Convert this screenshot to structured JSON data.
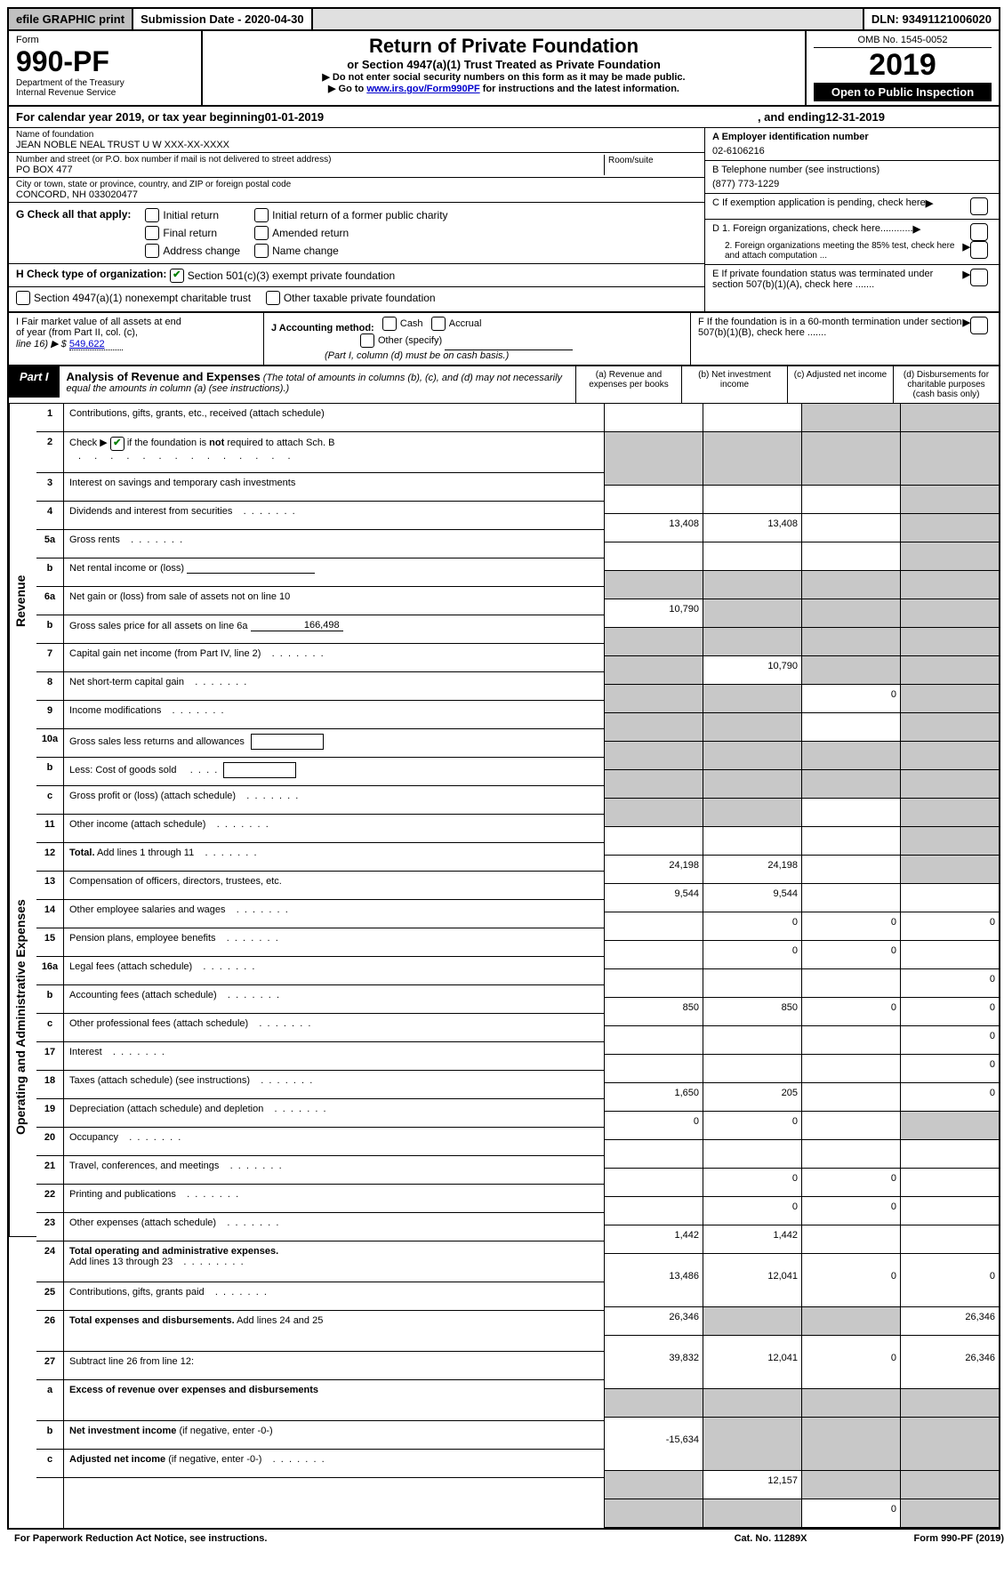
{
  "topbar": {
    "efile": "efile GRAPHIC print",
    "subdate_label": "Submission Date - 2020-04-30",
    "dln": "DLN: 93491121006020"
  },
  "header": {
    "form_label": "Form",
    "form_num": "990-PF",
    "dept1": "Department of the Treasury",
    "dept2": "Internal Revenue Service",
    "title": "Return of Private Foundation",
    "subtitle": "or Section 4947(a)(1) Trust Treated as Private Foundation",
    "note1": "▶ Do not enter social security numbers on this form as it may be made public.",
    "note2_pre": "▶ Go to ",
    "note2_link": "www.irs.gov/Form990PF",
    "note2_post": " for instructions and the latest information.",
    "omb": "OMB No. 1545-0052",
    "year": "2019",
    "open_pub": "Open to Public Inspection"
  },
  "calrow": {
    "pre": "For calendar year 2019, or tax year beginning ",
    "begin": "01-01-2019",
    "mid": " , and ending ",
    "end": "12-31-2019"
  },
  "info": {
    "name_label": "Name of foundation",
    "name": "JEAN NOBLE NEAL TRUST U W XXX-XX-XXXX",
    "addr_label": "Number and street (or P.O. box number if mail is not delivered to street address)",
    "room_label": "Room/suite",
    "addr": "PO BOX 477",
    "city_label": "City or town, state or province, country, and ZIP or foreign postal code",
    "city": "CONCORD, NH  033020477",
    "a_label": "A Employer identification number",
    "a_val": "02-6106216",
    "b_label": "B Telephone number (see instructions)",
    "b_val": "(877) 773-1229",
    "c_label": "C If exemption application is pending, check here",
    "d1": "D 1. Foreign organizations, check here............",
    "d2": "2. Foreign organizations meeting the 85% test, check here and attach computation ...",
    "e_label": "E If private foundation status was terminated under section 507(b)(1)(A), check here .......",
    "f_label": "F If the foundation is in a 60-month termination under section 507(b)(1)(B), check here ......."
  },
  "g": {
    "label": "G Check all that apply:",
    "initial": "Initial return",
    "initial_former": "Initial return of a former public charity",
    "final": "Final return",
    "amended": "Amended return",
    "addr_change": "Address change",
    "name_change": "Name change"
  },
  "h": {
    "label": "H Check type of organization:",
    "s501": "Section 501(c)(3) exempt private foundation",
    "s4947": "Section 4947(a)(1) nonexempt charitable trust",
    "other": "Other taxable private foundation"
  },
  "i": {
    "label_1": "I Fair market value of all assets at end",
    "label_2": "of year (from Part II, col. (c),",
    "label_3": "line 16) ▶ $",
    "val": "549,622"
  },
  "j": {
    "label": "J Accounting method:",
    "cash": "Cash",
    "accrual": "Accrual",
    "other": "Other (specify)",
    "note": "(Part I, column (d) must be on cash basis.)"
  },
  "part1": {
    "badge": "Part I",
    "title": "Analysis of Revenue and Expenses",
    "note": "(The total of amounts in columns (b), (c), and (d) may not necessarily equal the amounts in column (a) (see instructions).)",
    "col_a": "(a) Revenue and expenses per books",
    "col_b": "(b) Net investment income",
    "col_c": "(c) Adjusted net income",
    "col_d": "(d) Disbursements for charitable purposes (cash basis only)"
  },
  "side": {
    "revenue": "Revenue",
    "expenses": "Operating and Administrative Expenses"
  },
  "rows": [
    {
      "n": "1",
      "d": "s",
      "a": "",
      "b": "",
      "c": "s"
    },
    {
      "n": "2",
      "d": "s",
      "extra_dots": true,
      "tall": true,
      "a": "s",
      "b": "s",
      "c": "s"
    },
    {
      "n": "3",
      "d": "s",
      "a": "",
      "b": "",
      "c": ""
    },
    {
      "n": "4",
      "d": "s",
      "dots": true,
      "a": "13,408",
      "b": "13,408",
      "c": ""
    },
    {
      "n": "5a",
      "d": "s",
      "dots": true,
      "a": "",
      "b": "",
      "c": ""
    },
    {
      "n": "b",
      "d": "s",
      "line": true,
      "a": "s",
      "b": "s",
      "c": "s"
    },
    {
      "n": "6a",
      "d": "s",
      "a": "10,790",
      "b": "s",
      "c": "s"
    },
    {
      "n": "b",
      "d": "s",
      "inline_line": "166,498",
      "a": "s",
      "b": "s",
      "c": "s"
    },
    {
      "n": "7",
      "d": "s",
      "dots": true,
      "a": "s",
      "b": "10,790",
      "c": "s"
    },
    {
      "n": "8",
      "d": "s",
      "dots": true,
      "a": "s",
      "b": "s",
      "c": "0"
    },
    {
      "n": "9",
      "d": "s",
      "dots": true,
      "a": "s",
      "b": "s",
      "c": ""
    },
    {
      "n": "10a",
      "d": "s",
      "box": true,
      "a": "s",
      "b": "s",
      "c": "s"
    },
    {
      "n": "b",
      "d": "s",
      "dots": true,
      "box": true,
      "a": "s",
      "b": "s",
      "c": "s"
    },
    {
      "n": "c",
      "d": "s",
      "dots": true,
      "a": "s",
      "b": "s",
      "c": ""
    },
    {
      "n": "11",
      "d": "s",
      "dots": true,
      "a": "",
      "b": "",
      "c": ""
    },
    {
      "n": "12",
      "d": "s",
      "bold": true,
      "dots": true,
      "a": "24,198",
      "b": "24,198",
      "c": ""
    },
    {
      "n": "13",
      "d": "",
      "a": "9,544",
      "b": "9,544",
      "c": ""
    },
    {
      "n": "14",
      "d": "0",
      "dots": true,
      "a": "",
      "b": "0",
      "c": "0"
    },
    {
      "n": "15",
      "d": "",
      "dots": true,
      "a": "",
      "b": "0",
      "c": "0"
    },
    {
      "n": "16a",
      "d": "0",
      "dots": true,
      "a": "",
      "b": "",
      "c": ""
    },
    {
      "n": "b",
      "d": "0",
      "dots": true,
      "a": "850",
      "b": "850",
      "c": "0"
    },
    {
      "n": "c",
      "d": "0",
      "dots": true,
      "a": "",
      "b": "",
      "c": ""
    },
    {
      "n": "17",
      "d": "0",
      "dots": true,
      "a": "",
      "b": "",
      "c": ""
    },
    {
      "n": "18",
      "d": "0",
      "dots": true,
      "a": "1,650",
      "b": "205",
      "c": ""
    },
    {
      "n": "19",
      "d": "s",
      "dots": true,
      "a": "0",
      "b": "0",
      "c": ""
    },
    {
      "n": "20",
      "d": "",
      "dots": true,
      "a": "",
      "b": "",
      "c": ""
    },
    {
      "n": "21",
      "d": "",
      "dots": true,
      "a": "",
      "b": "0",
      "c": "0"
    },
    {
      "n": "22",
      "d": "",
      "dots": true,
      "a": "",
      "b": "0",
      "c": "0"
    },
    {
      "n": "23",
      "d": "",
      "dots": true,
      "a": "1,442",
      "b": "1,442",
      "c": ""
    },
    {
      "n": "24",
      "d": "0",
      "bold_first": true,
      "dots": true,
      "tall": true,
      "a": "13,486",
      "b": "12,041",
      "c": "0"
    },
    {
      "n": "25",
      "d": "26,346",
      "dots": true,
      "a": "26,346",
      "b": "s",
      "c": "s"
    },
    {
      "n": "26",
      "d": "26,346",
      "bold": true,
      "tall": true,
      "a": "39,832",
      "b": "12,041",
      "c": "0"
    },
    {
      "n": "27",
      "d": "s",
      "a": "s",
      "b": "s",
      "c": "s"
    },
    {
      "n": "a",
      "d": "s",
      "bold": true,
      "tall": true,
      "a": "-15,634",
      "b": "s",
      "c": "s"
    },
    {
      "n": "b",
      "d": "s",
      "bold": true,
      "a": "s",
      "b": "12,157",
      "c": "s"
    },
    {
      "n": "c",
      "d": "s",
      "bold": true,
      "dots": true,
      "a": "s",
      "b": "s",
      "c": "0"
    }
  ],
  "footer": {
    "left": "For Paperwork Reduction Act Notice, see instructions.",
    "center": "Cat. No. 11289X",
    "right": "Form 990-PF (2019)"
  }
}
